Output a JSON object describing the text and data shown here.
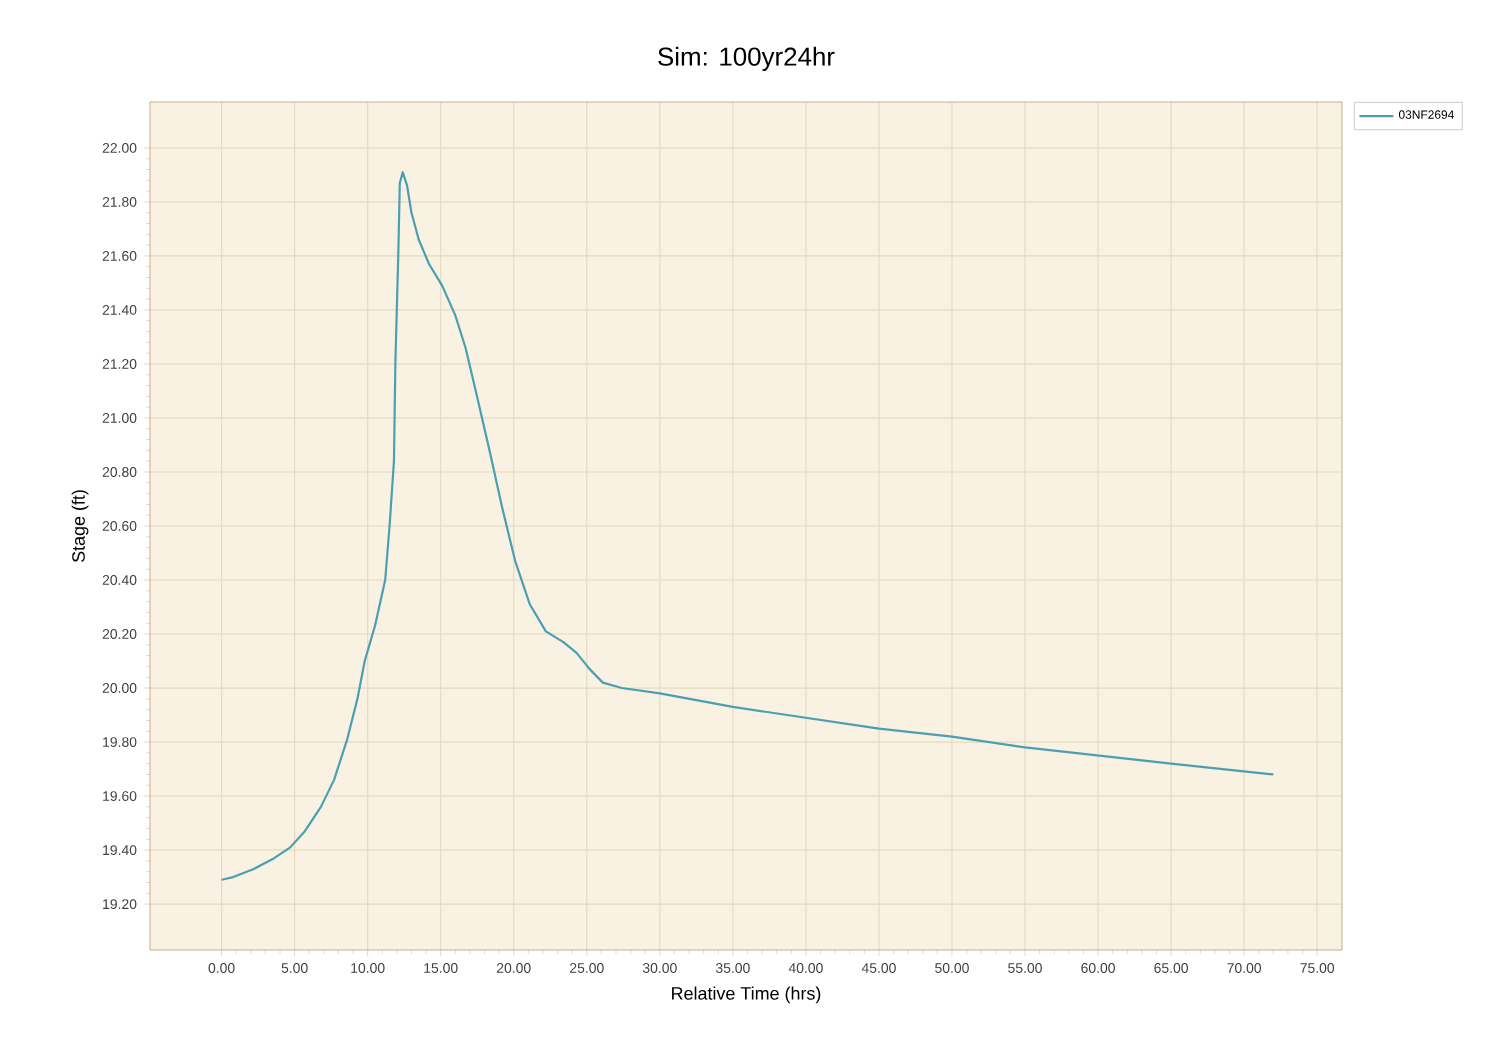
{
  "chart_data": {
    "type": "line",
    "title": "Sim: 100yr24hr",
    "xlabel": "Relative Time (hrs)",
    "ylabel": "Stage (ft)",
    "xlim": [
      -4.9,
      76.7
    ],
    "ylim": [
      19.03,
      22.17
    ],
    "xticks": [
      {
        "value": 0,
        "label": "0.00"
      },
      {
        "value": 5,
        "label": "5.00"
      },
      {
        "value": 10,
        "label": "10.00"
      },
      {
        "value": 15,
        "label": "15.00"
      },
      {
        "value": 20,
        "label": "20.00"
      },
      {
        "value": 25,
        "label": "25.00"
      },
      {
        "value": 30,
        "label": "30.00"
      },
      {
        "value": 35,
        "label": "35.00"
      },
      {
        "value": 40,
        "label": "40.00"
      },
      {
        "value": 45,
        "label": "45.00"
      },
      {
        "value": 50,
        "label": "50.00"
      },
      {
        "value": 55,
        "label": "55.00"
      },
      {
        "value": 60,
        "label": "60.00"
      },
      {
        "value": 65,
        "label": "65.00"
      },
      {
        "value": 70,
        "label": "70.00"
      },
      {
        "value": 75,
        "label": "75.00"
      }
    ],
    "yticks": [
      {
        "value": 19.2,
        "label": "19.20"
      },
      {
        "value": 19.4,
        "label": "19.40"
      },
      {
        "value": 19.6,
        "label": "19.60"
      },
      {
        "value": 19.8,
        "label": "19.80"
      },
      {
        "value": 20.0,
        "label": "20.00"
      },
      {
        "value": 20.2,
        "label": "20.20"
      },
      {
        "value": 20.4,
        "label": "20.40"
      },
      {
        "value": 20.6,
        "label": "20.60"
      },
      {
        "value": 20.8,
        "label": "20.80"
      },
      {
        "value": 21.0,
        "label": "21.00"
      },
      {
        "value": 21.2,
        "label": "21.20"
      },
      {
        "value": 21.4,
        "label": "21.40"
      },
      {
        "value": 21.6,
        "label": "21.60"
      },
      {
        "value": 21.8,
        "label": "21.80"
      },
      {
        "value": 22.0,
        "label": "22.00"
      }
    ],
    "grid": true,
    "legend": "top right",
    "marker": "none",
    "line_style": "solid",
    "series": [
      {
        "name": "03NF2694",
        "color": "#4a9fb0",
        "x": [
          0,
          0.8,
          2.2,
          3.6,
          4.7,
          5.7,
          6.8,
          7.7,
          8.6,
          9.3,
          9.8,
          10.5,
          11.2,
          11.5,
          11.8,
          11.9,
          12.1,
          12.2,
          12.4,
          12.7,
          13.0,
          13.5,
          14.2,
          15.1,
          16.0,
          16.7,
          17.4,
          18.3,
          19.2,
          20.1,
          21.1,
          22.2,
          23.4,
          24.3,
          25.2,
          26.1,
          27.4,
          30,
          35,
          40,
          45,
          50,
          55,
          60,
          65,
          72
        ],
        "values": [
          19.29,
          19.3,
          19.33,
          19.37,
          19.41,
          19.47,
          19.56,
          19.66,
          19.81,
          19.96,
          20.1,
          20.23,
          20.4,
          20.6,
          20.84,
          21.21,
          21.61,
          21.87,
          21.91,
          21.86,
          21.76,
          21.66,
          21.57,
          21.49,
          21.38,
          21.26,
          21.1,
          20.89,
          20.67,
          20.47,
          20.31,
          20.21,
          20.17,
          20.13,
          20.07,
          20.02,
          20.0,
          19.98,
          19.93,
          19.89,
          19.85,
          19.82,
          19.78,
          19.75,
          19.72,
          19.68
        ]
      }
    ]
  }
}
